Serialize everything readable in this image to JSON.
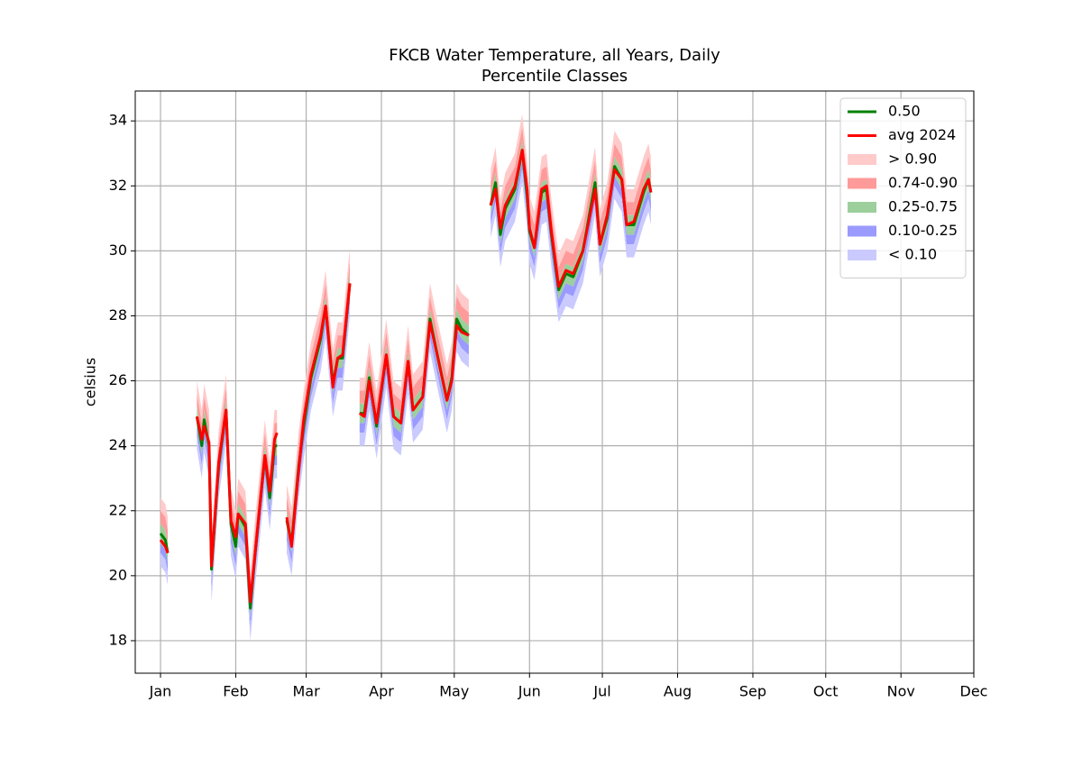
{
  "chart_data": {
    "type": "percentile_bands",
    "title": "FKCB Water Temperature, all Years, Daily",
    "subtitle": "Percentile Classes",
    "y_label": "celsius",
    "xlim": [
      -9.4,
      336
    ],
    "ylim": [
      17,
      34.92
    ],
    "xticks": [
      {
        "value": 1,
        "label": "Jan"
      },
      {
        "value": 32,
        "label": "Feb"
      },
      {
        "value": 61,
        "label": "Mar"
      },
      {
        "value": 92,
        "label": "Apr"
      },
      {
        "value": 122,
        "label": "May"
      },
      {
        "value": 153,
        "label": "Jun"
      },
      {
        "value": 183,
        "label": "Jul"
      },
      {
        "value": 214,
        "label": "Aug"
      },
      {
        "value": 245,
        "label": "Sep"
      },
      {
        "value": 275,
        "label": "Oct"
      },
      {
        "value": 306,
        "label": "Nov"
      },
      {
        "value": 336,
        "label": "Dec"
      }
    ],
    "yticks": [
      18,
      20,
      22,
      24,
      26,
      28,
      30,
      32,
      34
    ],
    "grid": true,
    "legend": "upper right",
    "x": [
      1,
      3,
      4,
      10,
      16,
      18,
      19,
      21,
      22,
      25,
      28,
      30,
      32,
      33,
      36,
      38,
      40,
      44,
      46,
      48,
      49,
      51,
      53,
      55,
      58,
      60,
      63,
      67,
      69,
      72,
      74,
      76,
      79,
      81,
      83,
      85,
      87,
      90,
      94,
      97,
      100,
      103,
      105,
      109,
      112,
      115,
      119,
      121,
      123,
      125,
      128,
      132,
      137,
      139,
      141,
      143,
      147,
      150,
      152,
      153,
      155,
      158,
      160,
      162,
      165,
      168,
      171,
      175,
      180,
      182,
      185,
      188,
      191,
      193,
      196,
      200,
      202,
      203
    ],
    "series": [
      {
        "name": "0.50",
        "color": "#008000",
        "values": [
          21.3,
          21.1,
          20.7,
          null,
          24.9,
          24.0,
          24.8,
          24.0,
          20.2,
          23.4,
          25.1,
          21.6,
          20.9,
          21.9,
          21.5,
          19.0,
          20.7,
          23.7,
          22.4,
          24.0,
          24.0,
          null,
          21.7,
          21.0,
          23.4,
          24.6,
          26.1,
          27.3,
          28.3,
          25.9,
          26.7,
          26.7,
          29.0,
          null,
          25.0,
          25.0,
          26.1,
          24.6,
          26.8,
          24.9,
          24.7,
          26.6,
          25.1,
          25.5,
          27.9,
          26.8,
          25.4,
          26.1,
          27.9,
          27.6,
          27.4,
          null,
          31.4,
          32.1,
          30.5,
          31.3,
          31.9,
          33.1,
          31.7,
          30.6,
          30.1,
          31.8,
          31.9,
          30.5,
          28.8,
          29.3,
          29.2,
          30.0,
          32.1,
          30.2,
          31.0,
          32.6,
          32.2,
          30.8,
          30.8,
          31.8,
          32.2,
          31.8
        ]
      },
      {
        "name": "avg 2024",
        "color": "#ff0000",
        "values": [
          21.1,
          20.9,
          20.7,
          null,
          24.9,
          24.2,
          24.6,
          24.1,
          20.3,
          23.5,
          25.1,
          21.7,
          21.2,
          21.9,
          21.6,
          19.2,
          20.7,
          23.7,
          22.6,
          24.2,
          24.4,
          null,
          21.8,
          20.9,
          23.3,
          24.8,
          26.2,
          27.4,
          28.3,
          25.8,
          26.7,
          26.8,
          29.0,
          null,
          25.0,
          24.9,
          26.0,
          24.7,
          26.8,
          24.9,
          24.7,
          26.6,
          25.1,
          25.5,
          27.8,
          26.8,
          25.4,
          26.0,
          27.7,
          27.5,
          27.4,
          null,
          31.4,
          31.9,
          30.7,
          31.4,
          32.0,
          33.1,
          31.9,
          30.7,
          30.1,
          31.9,
          32.0,
          30.6,
          28.9,
          29.4,
          29.3,
          30.0,
          31.9,
          30.2,
          31.1,
          32.5,
          32.2,
          30.8,
          30.9,
          31.9,
          32.2,
          31.8
        ]
      }
    ],
    "bands": [
      {
        "name": "> 0.90",
        "color": "#ffcaca"
      },
      {
        "name": "0.74-0.90",
        "color": "#ff9a9a"
      },
      {
        "name": "0.25-0.75",
        "color": "#9ccf9c"
      },
      {
        "name": "0.10-0.25",
        "color": "#9a9aff"
      },
      {
        "name": "< 0.10",
        "color": "#cacaff"
      }
    ],
    "levels": [
      [
        20.3,
        20.1,
        19.7,
        null,
        23.9,
        23.0,
        23.8,
        23.0,
        19.2,
        22.4,
        24.1,
        20.6,
        19.9,
        20.9,
        20.5,
        18.0,
        19.7,
        22.7,
        21.4,
        23.0,
        23.0,
        null,
        20.7,
        20.0,
        22.4,
        23.6,
        25.1,
        26.3,
        27.3,
        24.9,
        25.7,
        25.7,
        28.0,
        null,
        24.0,
        24.0,
        25.1,
        23.6,
        25.8,
        23.9,
        23.7,
        25.6,
        24.1,
        24.5,
        26.9,
        25.8,
        24.4,
        25.1,
        26.9,
        26.6,
        26.4,
        null,
        30.4,
        31.1,
        29.5,
        30.3,
        30.9,
        32.1,
        30.7,
        29.6,
        29.1,
        30.8,
        30.9,
        29.5,
        27.8,
        28.3,
        28.2,
        29.0,
        31.1,
        29.2,
        30.0,
        31.6,
        31.2,
        29.8,
        29.8,
        30.8,
        31.2,
        30.8
      ],
      [
        20.7,
        20.5,
        20.1,
        null,
        24.3,
        23.4,
        24.2,
        23.4,
        19.6,
        22.8,
        24.5,
        21.0,
        20.3,
        21.3,
        20.9,
        18.4,
        20.1,
        23.1,
        21.8,
        23.4,
        23.4,
        null,
        21.1,
        20.4,
        22.8,
        24.0,
        25.5,
        26.7,
        27.7,
        25.3,
        26.1,
        26.1,
        28.4,
        null,
        24.4,
        24.4,
        25.5,
        24.0,
        26.2,
        24.3,
        24.1,
        26.0,
        24.5,
        24.9,
        27.3,
        26.2,
        24.8,
        25.5,
        27.3,
        27.0,
        26.8,
        null,
        30.8,
        31.5,
        29.9,
        30.7,
        31.3,
        32.5,
        31.1,
        30.0,
        29.5,
        31.2,
        31.3,
        29.9,
        28.2,
        28.7,
        28.6,
        29.4,
        31.5,
        29.6,
        30.4,
        32.0,
        31.6,
        30.2,
        30.2,
        31.2,
        31.6,
        31.2
      ],
      [
        21.0,
        20.8,
        20.4,
        null,
        24.6,
        23.7,
        24.5,
        23.7,
        19.9,
        23.1,
        24.8,
        21.3,
        20.6,
        21.6,
        21.2,
        18.7,
        20.4,
        23.4,
        22.1,
        23.7,
        23.7,
        null,
        21.4,
        20.7,
        23.1,
        24.3,
        25.8,
        27.0,
        28.0,
        25.6,
        26.4,
        26.4,
        28.7,
        null,
        24.7,
        24.7,
        25.8,
        24.3,
        26.5,
        24.6,
        24.4,
        26.3,
        24.8,
        25.2,
        27.6,
        26.5,
        25.1,
        25.8,
        27.6,
        27.3,
        27.1,
        null,
        31.1,
        31.8,
        30.2,
        31.0,
        31.6,
        32.8,
        31.4,
        30.3,
        29.8,
        31.5,
        31.6,
        30.2,
        28.5,
        29.0,
        28.9,
        29.7,
        31.8,
        29.9,
        30.7,
        32.3,
        31.9,
        30.5,
        30.5,
        31.5,
        31.9,
        31.5
      ],
      [
        21.6,
        21.4,
        21.0,
        null,
        25.2,
        24.3,
        25.1,
        24.3,
        20.5,
        23.7,
        25.4,
        21.9,
        21.2,
        22.2,
        21.8,
        19.3,
        21.0,
        24.0,
        22.7,
        24.3,
        24.3,
        null,
        22.0,
        21.3,
        23.7,
        24.9,
        26.4,
        27.6,
        28.6,
        26.2,
        27.0,
        27.0,
        29.3,
        null,
        25.3,
        25.3,
        26.4,
        24.9,
        27.1,
        25.2,
        25.0,
        26.9,
        25.4,
        25.8,
        28.2,
        27.1,
        25.7,
        26.4,
        28.2,
        27.9,
        27.7,
        null,
        31.7,
        32.4,
        30.8,
        31.6,
        32.2,
        33.4,
        32.0,
        30.9,
        30.4,
        32.1,
        32.2,
        30.8,
        29.1,
        29.6,
        29.5,
        30.3,
        32.4,
        30.5,
        31.3,
        32.9,
        32.5,
        31.1,
        31.1,
        32.1,
        32.5,
        32.1
      ],
      [
        22.0,
        21.8,
        21.4,
        null,
        25.6,
        24.7,
        25.5,
        24.7,
        20.9,
        24.1,
        25.8,
        22.3,
        21.6,
        22.6,
        22.2,
        19.7,
        21.4,
        24.4,
        23.1,
        24.7,
        24.7,
        null,
        22.4,
        21.7,
        24.1,
        25.3,
        26.8,
        28.0,
        29.0,
        26.6,
        27.4,
        27.4,
        29.7,
        null,
        25.7,
        25.7,
        26.8,
        25.3,
        27.5,
        25.6,
        25.4,
        27.3,
        25.8,
        26.2,
        28.6,
        27.5,
        26.1,
        26.8,
        28.6,
        28.3,
        28.1,
        null,
        32.1,
        32.8,
        31.2,
        32.0,
        32.6,
        33.8,
        32.4,
        31.3,
        30.8,
        32.5,
        32.6,
        31.2,
        29.5,
        30.0,
        29.9,
        30.7,
        32.8,
        30.9,
        31.7,
        33.3,
        32.9,
        31.5,
        31.5,
        32.5,
        32.9,
        32.5
      ],
      [
        22.4,
        22.2,
        21.8,
        null,
        26.0,
        25.1,
        25.9,
        25.1,
        21.3,
        24.5,
        26.2,
        22.7,
        22.0,
        23.0,
        22.6,
        20.1,
        21.8,
        24.8,
        23.5,
        25.1,
        25.1,
        null,
        22.8,
        22.1,
        24.5,
        25.7,
        27.2,
        28.4,
        29.4,
        27.0,
        27.8,
        27.8,
        30.1,
        null,
        26.1,
        26.1,
        27.2,
        25.7,
        27.9,
        26.0,
        25.8,
        27.7,
        26.2,
        26.6,
        29.0,
        27.9,
        26.5,
        27.2,
        29.0,
        28.7,
        28.5,
        null,
        32.5,
        33.2,
        31.6,
        32.4,
        33.0,
        34.2,
        32.8,
        31.7,
        31.2,
        32.9,
        33.0,
        31.6,
        29.9,
        30.4,
        30.3,
        31.1,
        33.2,
        31.3,
        32.1,
        33.7,
        33.3,
        31.9,
        31.9,
        32.9,
        33.3,
        32.9
      ]
    ]
  }
}
